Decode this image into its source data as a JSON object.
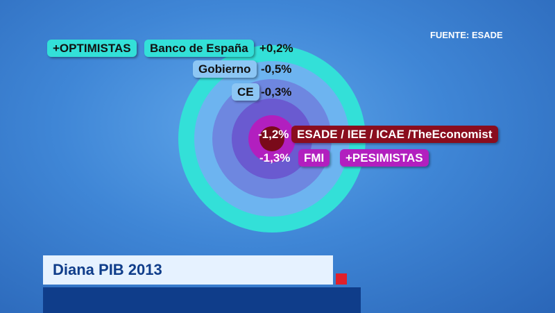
{
  "source": "FUENTE: ESADE",
  "tags": {
    "optimistas": "+OPTIMISTAS",
    "pesimistas": "+PESIMISTAS"
  },
  "forecasts": [
    {
      "institution": "Banco de España",
      "value": "+0,2%"
    },
    {
      "institution": "Gobierno",
      "value": "-0,5%"
    },
    {
      "institution": "CE",
      "value": "-0,3%"
    },
    {
      "institution": "ESADE / IEE / ICAE /TheEconomist",
      "value": "-1,2%"
    },
    {
      "institution": "FMI",
      "value": "-1,3%"
    }
  ],
  "title": "Diana PIB 2013"
}
